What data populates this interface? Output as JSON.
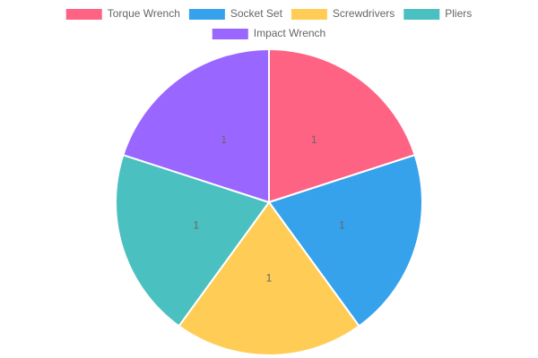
{
  "chart_data": {
    "type": "pie",
    "categories": [
      "Torque Wrench",
      "Socket Set",
      "Screwdrivers",
      "Pliers",
      "Impact Wrench"
    ],
    "values": [
      1,
      1,
      1,
      1,
      1
    ],
    "colors": [
      "#ff6384",
      "#36a2eb",
      "#ffcd56",
      "#4bc0c0",
      "#9966ff"
    ],
    "legend": "top",
    "data_labels": true
  }
}
